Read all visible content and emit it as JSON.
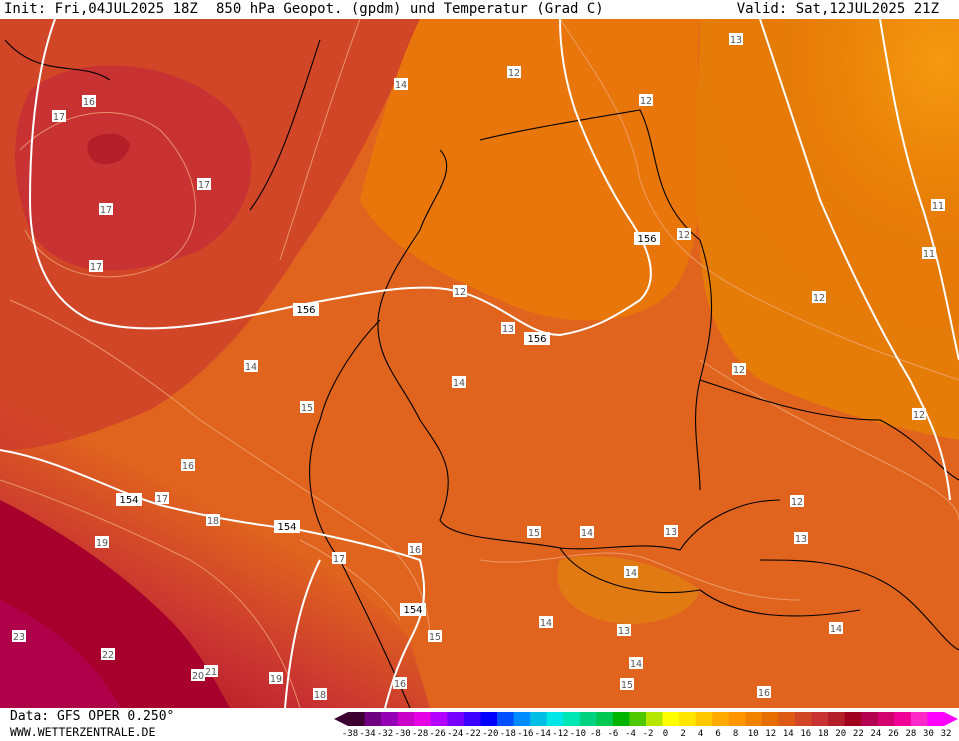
{
  "header": {
    "init": "Init: Fri,04JUL2025 18Z",
    "title": "850 hPa Geopot. (gpdm) und Temperatur (Grad C)",
    "valid": "Valid: Sat,12JUL2025 21Z"
  },
  "footer": {
    "data_source": "Data: GFS OPER 0.250°",
    "website": "WWW.WETTERZENTRALE.DE"
  },
  "legend": {
    "ticks": [
      "-38",
      "-34",
      "-32",
      "-30",
      "-28",
      "-26",
      "-24",
      "-22",
      "-20",
      "-18",
      "-16",
      "-14",
      "-12",
      "-10",
      "-8",
      "-6",
      "-4",
      "-2",
      "0",
      "2",
      "4",
      "6",
      "8",
      "10",
      "12",
      "14",
      "16",
      "18",
      "20",
      "22",
      "24",
      "26",
      "28",
      "30",
      "32"
    ],
    "colors": [
      "#3c0030",
      "#6e0082",
      "#9600b4",
      "#c800c8",
      "#e600e6",
      "#b400ff",
      "#7800ff",
      "#3c00ff",
      "#0000ff",
      "#0050ff",
      "#008cff",
      "#00bee6",
      "#00e6e6",
      "#00e6b4",
      "#00d282",
      "#00c850",
      "#00b400",
      "#50c800",
      "#b4e600",
      "#ffff00",
      "#ffe600",
      "#ffc800",
      "#ffaa00",
      "#ff9600",
      "#f08200",
      "#e66e00",
      "#dc5a14",
      "#d24628",
      "#c83232",
      "#b41e28",
      "#a0001e",
      "#b40050",
      "#d2006e",
      "#f00096",
      "#ff28c8",
      "#ff00ff"
    ]
  },
  "map": {
    "geopotential_labels": [
      "156",
      "156",
      "156",
      "154",
      "154",
      "154"
    ],
    "temperature_labels": [
      "13",
      "12",
      "12",
      "14",
      "16",
      "17",
      "17",
      "17",
      "17",
      "17",
      "12",
      "12",
      "11",
      "11",
      "12",
      "12",
      "13",
      "14",
      "14",
      "15",
      "16",
      "17",
      "18",
      "16",
      "19",
      "14",
      "15",
      "12",
      "13",
      "13",
      "14",
      "14",
      "14",
      "13",
      "14",
      "15",
      "16",
      "23",
      "22",
      "20",
      "21",
      "19",
      "18",
      "16",
      "15",
      "12"
    ]
  }
}
